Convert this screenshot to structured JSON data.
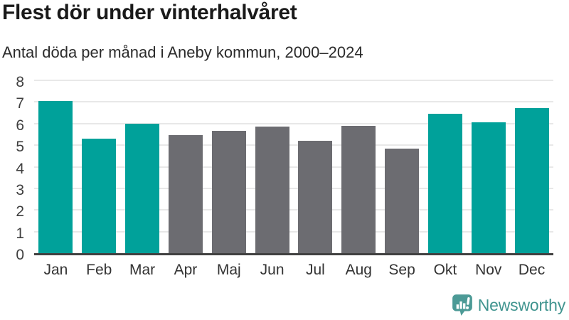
{
  "chart_data": {
    "type": "bar",
    "title": "Flest dör under vinterhalvåret",
    "subtitle": "Antal döda per månad i Aneby kommun, 2000–2024",
    "categories": [
      "Jan",
      "Feb",
      "Mar",
      "Apr",
      "Maj",
      "Jun",
      "Jul",
      "Aug",
      "Sep",
      "Okt",
      "Nov",
      "Dec"
    ],
    "values": [
      7.05,
      5.3,
      6.0,
      5.45,
      5.65,
      5.85,
      5.2,
      5.9,
      4.85,
      6.45,
      6.05,
      6.7
    ],
    "bar_colors": [
      "#00a19a",
      "#00a19a",
      "#00a19a",
      "#6c6c71",
      "#6c6c71",
      "#6c6c71",
      "#6c6c71",
      "#6c6c71",
      "#6c6c71",
      "#00a19a",
      "#00a19a",
      "#00a19a"
    ],
    "highlight_color": "#00a19a",
    "base_color": "#6c6c71",
    "xlabel": "",
    "ylabel": "",
    "ylim": [
      0,
      8
    ],
    "yticks": [
      0,
      1,
      2,
      3,
      4,
      5,
      6,
      7,
      8
    ],
    "grid": true,
    "gridline_color": "#e8e8e8",
    "axis_line_color": "#414141",
    "legend": "none"
  },
  "footer": {
    "brand": "Newsworthy",
    "brand_color": "#40948f",
    "logo_icon": "speech-bubble-bar-chart-icon"
  }
}
